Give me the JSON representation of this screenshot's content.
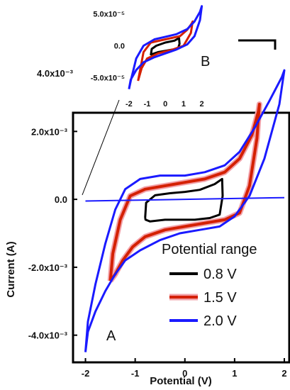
{
  "chart_data": [
    {
      "id": "A",
      "type": "line",
      "panel_label": "A",
      "xlabel": "Potential (V)",
      "ylabel": "Current (A)",
      "xlim": [
        -2.25,
        2.1
      ],
      "ylim": [
        -0.0048,
        0.00255
      ],
      "x_ticks": [
        -2,
        -1,
        0,
        1,
        2
      ],
      "x_tick_labels": [
        "-2",
        "-1",
        "0",
        "1",
        "2"
      ],
      "y_ticks": [
        -0.004,
        -0.002,
        0.0,
        0.002
      ],
      "y_tick_labels": [
        "-4.0x10⁻³",
        "-2.0x10⁻³",
        "0.0",
        "2.0x10⁻³"
      ],
      "extra_label": "4.0x10⁻³",
      "legend": {
        "title": "Potential range",
        "placement": "bottom-right",
        "entries": [
          "0.8 V",
          "1.5 V",
          "2.0 V"
        ]
      },
      "series": [
        {
          "name": "0.8 V",
          "color": "#000000",
          "x": [
            -0.8,
            -0.78,
            -0.6,
            -0.3,
            0.0,
            0.3,
            0.6,
            0.75,
            0.76,
            0.7,
            0.5,
            0.2,
            -0.1,
            -0.4,
            -0.7,
            -0.79,
            -0.8
          ],
          "y": [
            -0.00055,
            -0.0001,
            0.00012,
            0.00018,
            0.00022,
            0.00028,
            0.00045,
            0.0006,
            0.0001,
            -0.00045,
            -0.00055,
            -0.0006,
            -0.0006,
            -0.0006,
            -0.00065,
            -0.0006,
            -0.00055
          ]
        },
        {
          "name": "1.5 V",
          "color": "#d42000",
          "x": [
            -1.5,
            -1.45,
            -1.3,
            -1.1,
            -0.8,
            -0.4,
            0.0,
            0.4,
            0.8,
            1.1,
            1.35,
            1.48,
            1.5,
            1.45,
            1.3,
            1.1,
            0.8,
            0.4,
            0.0,
            -0.4,
            -0.8,
            -1.05,
            -1.25,
            -1.4,
            -1.5
          ],
          "y": [
            -0.0024,
            -0.0016,
            -0.0006,
            0.0001,
            0.0003,
            0.0004,
            0.0005,
            0.0006,
            0.0008,
            0.0012,
            0.0019,
            0.0026,
            0.0028,
            0.0018,
            0.0004,
            -0.0004,
            -0.0006,
            -0.0007,
            -0.0008,
            -0.0009,
            -0.0011,
            -0.0014,
            -0.0018,
            -0.0022,
            -0.0024
          ]
        },
        {
          "name": "2.0 V",
          "color": "#1a1aff",
          "x": [
            -2.0,
            -1.95,
            -1.8,
            -1.6,
            -1.4,
            -1.2,
            -0.9,
            -0.5,
            0.0,
            0.4,
            0.8,
            1.1,
            1.4,
            1.7,
            1.95,
            2.0,
            1.9,
            1.6,
            1.3,
            1.0,
            0.7,
            0.3,
            -0.1,
            -0.5,
            -0.9,
            -1.2,
            -1.4,
            -1.6,
            -1.8,
            -1.95,
            -2.0
          ],
          "y": [
            -0.0045,
            -0.0036,
            -0.0025,
            -0.0013,
            -0.0003,
            0.0003,
            0.0006,
            0.0007,
            0.0007,
            0.0008,
            0.001,
            0.0014,
            0.0021,
            0.0029,
            0.0036,
            0.0038,
            0.0028,
            0.0012,
            0.0001,
            -0.0005,
            -0.0008,
            -0.0009,
            -0.001,
            -0.0012,
            -0.0015,
            -0.0018,
            -0.0022,
            -0.0027,
            -0.0033,
            -0.0039,
            -0.0045
          ]
        },
        {
          "name": "",
          "color": "#1a1aff",
          "x": [
            -2.0,
            2.0
          ],
          "y": [
            -5e-05,
            5e-05
          ]
        }
      ]
    },
    {
      "id": "B",
      "type": "line",
      "panel_label": "B",
      "xlim": [
        -2.15,
        2.25
      ],
      "ylim": [
        -7.5e-05,
        6.5e-05
      ],
      "x_ticks": [
        -2,
        -1,
        0,
        1,
        2
      ],
      "x_tick_labels": [
        "-2",
        "-1",
        "0",
        "1",
        "2"
      ],
      "y_ticks": [
        -5e-05,
        0.0,
        5e-05
      ],
      "y_tick_labels": [
        "-5.0x10⁻⁵",
        "0.0",
        "5.0x10⁻⁵"
      ],
      "series": [
        {
          "name": "0.8 V",
          "color": "#000000",
          "x": [
            -0.8,
            -0.75,
            -0.5,
            0.0,
            0.5,
            0.75,
            0.78,
            0.7,
            0.4,
            0.0,
            -0.4,
            -0.7,
            -0.8
          ],
          "y": [
            -1.5e-05,
            -5e-06,
            0.0,
            5e-06,
            8e-06,
            1.2e-05,
            3e-06,
            -4e-06,
            -6e-06,
            -8e-06,
            -1e-05,
            -1.3e-05,
            -1.5e-05
          ]
        },
        {
          "name": "1.5 V",
          "color": "#d42000",
          "x": [
            -1.5,
            -1.4,
            -1.2,
            -0.8,
            0.0,
            0.8,
            1.2,
            1.45,
            1.5,
            1.4,
            1.0,
            0.4,
            -0.4,
            -1.0,
            -1.3,
            -1.5
          ],
          "y": [
            -5.5e-05,
            -4e-05,
            -1e-05,
            5e-06,
            1e-05,
            1.5e-05,
            2.5e-05,
            3.5e-05,
            3.8e-05,
            2e-05,
            0.0,
            -6e-06,
            -1.2e-05,
            -2e-05,
            -3.5e-05,
            -5.5e-05
          ]
        },
        {
          "name": "2.0 V",
          "color": "#1a1aff",
          "x": [
            -2.0,
            -1.9,
            -1.6,
            -1.2,
            -0.6,
            0.0,
            0.6,
            1.2,
            1.6,
            1.9,
            2.0,
            1.9,
            1.6,
            1.2,
            0.6,
            0.0,
            -0.6,
            -1.2,
            -1.6,
            -1.9,
            -2.0
          ],
          "y": [
            -6.8e-05,
            -5.5e-05,
            -2e-05,
            0.0,
            1e-05,
            1.4e-05,
            1.8e-05,
            2.6e-05,
            3.8e-05,
            5.3e-05,
            6.2e-05,
            4e-05,
            1.5e-05,
            2e-06,
            -6e-06,
            -1.2e-05,
            -1.8e-05,
            -2.6e-05,
            -3.8e-05,
            -5.3e-05,
            -6.8e-05
          ]
        }
      ]
    }
  ]
}
